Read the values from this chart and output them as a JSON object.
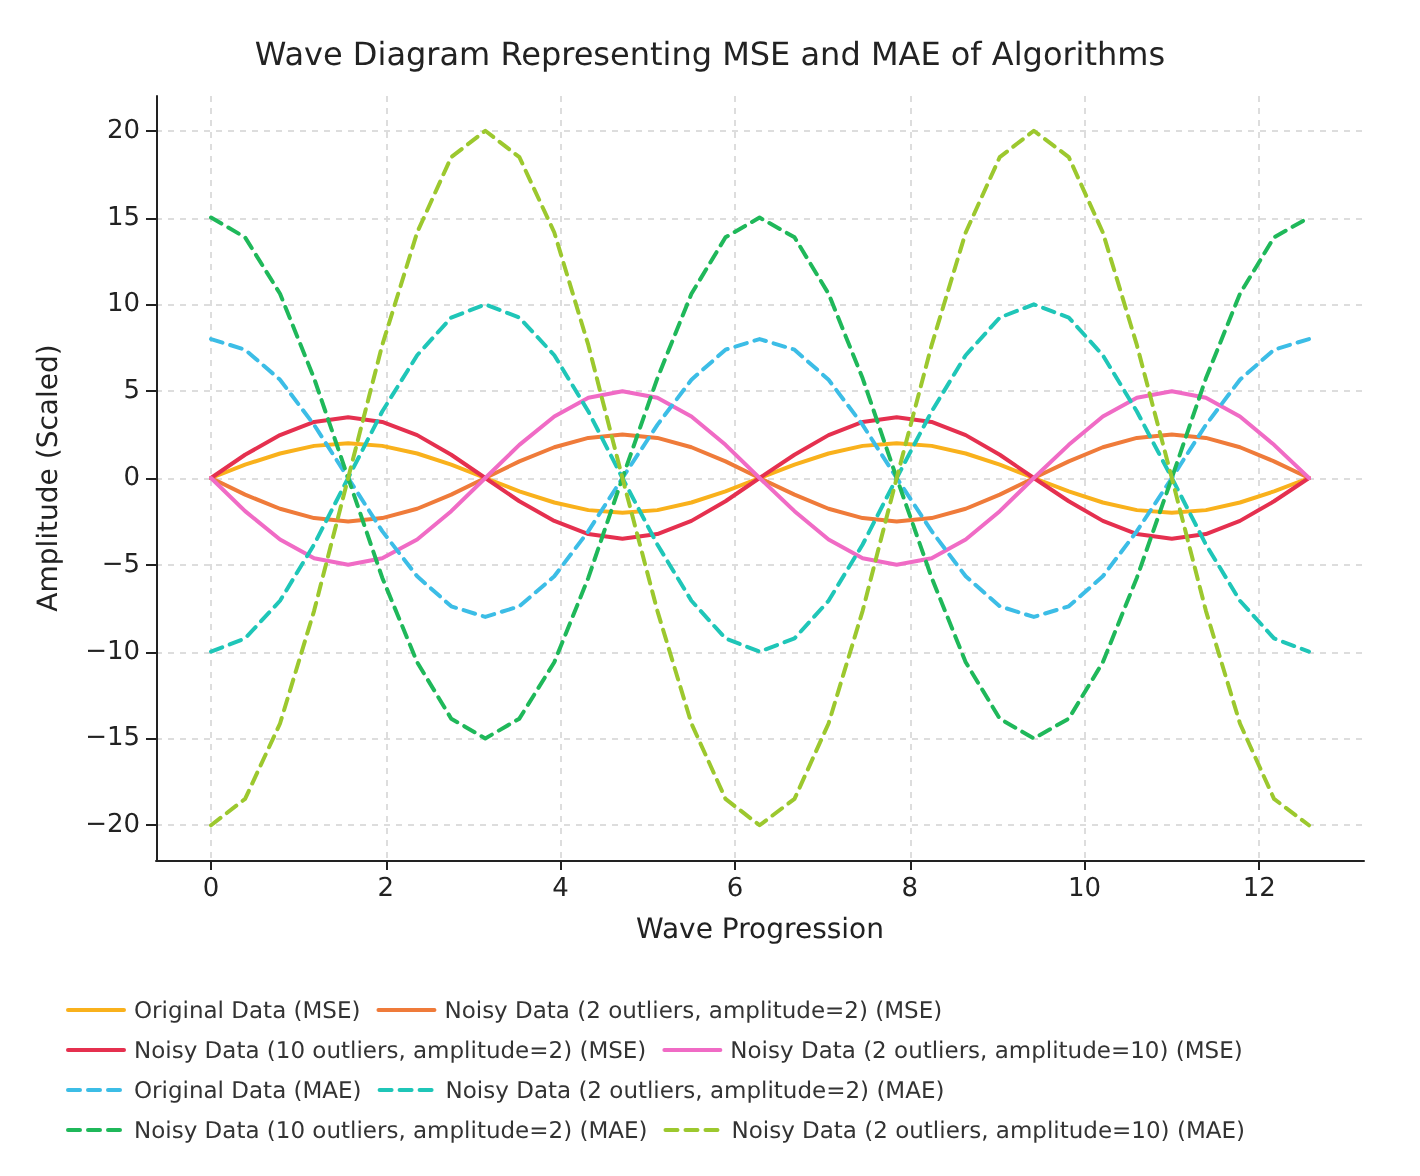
{
  "chart_data": {
    "type": "line",
    "title": "Wave Diagram Representing MSE and MAE of Algorithms",
    "xlabel": "Wave Progression",
    "ylabel": "Amplitude (Scaled)",
    "x": [
      0,
      0.39,
      0.79,
      1.18,
      1.57,
      1.96,
      2.36,
      2.75,
      3.14,
      3.53,
      3.93,
      4.32,
      4.71,
      5.11,
      5.5,
      5.89,
      6.28,
      6.68,
      7.07,
      7.46,
      7.85,
      8.25,
      8.64,
      9.03,
      9.42,
      9.82,
      10.21,
      10.6,
      11,
      11.39,
      11.78,
      12.17,
      12.57
    ],
    "xlim": [
      -0.63,
      13.2
    ],
    "xticks": [
      0,
      2,
      4,
      6,
      8,
      10,
      12
    ],
    "ylim": [
      -22,
      22
    ],
    "yticks": [
      -20,
      -15,
      -10,
      -5,
      0,
      5,
      10,
      15,
      20
    ],
    "grid": true,
    "legend": "bottom",
    "marker": "none",
    "series": [
      {
        "name": "Original Data (MSE)",
        "color": "#f9b11c",
        "line_style": "solid",
        "values": [
          0,
          0.77,
          1.41,
          1.85,
          2,
          1.85,
          1.41,
          0.77,
          0,
          -0.77,
          -1.41,
          -1.85,
          -2,
          -1.85,
          -1.41,
          -0.77,
          0,
          0.77,
          1.41,
          1.85,
          2,
          1.85,
          1.41,
          0.77,
          0,
          -0.77,
          -1.41,
          -1.85,
          -2,
          -1.85,
          -1.41,
          -0.77,
          0
        ]
      },
      {
        "name": "Noisy Data (2 outliers, amplitude=2) (MSE)",
        "color": "#ef7b3a",
        "line_style": "solid",
        "values": [
          0,
          -0.96,
          -1.77,
          -2.31,
          -2.5,
          -2.31,
          -1.77,
          -0.96,
          0,
          0.96,
          1.77,
          2.31,
          2.5,
          2.31,
          1.77,
          0.96,
          0,
          -0.96,
          -1.77,
          -2.31,
          -2.5,
          -2.31,
          -1.77,
          -0.96,
          0,
          0.96,
          1.77,
          2.31,
          2.5,
          2.31,
          1.77,
          0.96,
          0
        ]
      },
      {
        "name": "Noisy Data (10 outliers, amplitude=2) (MSE)",
        "color": "#e5304f",
        "line_style": "solid",
        "values": [
          0,
          1.34,
          2.47,
          3.23,
          3.5,
          3.23,
          2.47,
          1.34,
          0,
          -1.34,
          -2.47,
          -3.23,
          -3.5,
          -3.23,
          -2.47,
          -1.34,
          0,
          1.34,
          2.47,
          3.23,
          3.5,
          3.23,
          2.47,
          1.34,
          0,
          -1.34,
          -2.47,
          -3.23,
          -3.5,
          -3.23,
          -2.47,
          -1.34,
          0
        ]
      },
      {
        "name": "Noisy Data (2 outliers, amplitude=10) (MSE)",
        "color": "#f06bc5",
        "line_style": "solid",
        "values": [
          0,
          -1.91,
          -3.54,
          -4.62,
          -5,
          -4.62,
          -3.54,
          -1.91,
          0,
          1.91,
          3.54,
          4.62,
          5,
          4.62,
          3.54,
          1.91,
          0,
          -1.91,
          -3.54,
          -4.62,
          -5,
          -4.62,
          -3.54,
          -1.91,
          0,
          1.91,
          3.54,
          4.62,
          5,
          4.62,
          3.54,
          1.91,
          0
        ]
      },
      {
        "name": "Original Data (MAE)",
        "color": "#3cbde6",
        "line_style": "dashed",
        "values": [
          8,
          7.39,
          5.66,
          3.06,
          0,
          -3.06,
          -5.66,
          -7.39,
          -8,
          -7.39,
          -5.66,
          -3.06,
          0,
          3.06,
          5.66,
          7.39,
          8,
          7.39,
          5.66,
          3.06,
          0,
          -3.06,
          -5.66,
          -7.39,
          -8,
          -7.39,
          -5.66,
          -3.06,
          0,
          3.06,
          5.66,
          7.39,
          8
        ]
      },
      {
        "name": "Noisy Data (2 outliers, amplitude=2) (MAE)",
        "color": "#1fc6b8",
        "line_style": "dashed",
        "values": [
          -10,
          -9.24,
          -7.07,
          -3.83,
          0,
          3.83,
          7.07,
          9.24,
          10,
          9.24,
          7.07,
          3.83,
          0,
          -3.83,
          -7.07,
          -9.24,
          -10,
          -9.24,
          -7.07,
          -3.83,
          0,
          3.83,
          7.07,
          9.24,
          10,
          9.24,
          7.07,
          3.83,
          0,
          -3.83,
          -7.07,
          -9.24,
          -10
        ]
      },
      {
        "name": "Noisy Data (10 outliers, amplitude=2) (MAE)",
        "color": "#1fb85a",
        "line_style": "dashed",
        "values": [
          15,
          13.86,
          10.61,
          5.74,
          0,
          -5.74,
          -10.61,
          -13.86,
          -15,
          -13.86,
          -10.61,
          -5.74,
          0,
          5.74,
          10.61,
          13.86,
          15,
          13.86,
          10.61,
          5.74,
          0,
          -5.74,
          -10.61,
          -13.86,
          -15,
          -13.86,
          -10.61,
          -5.74,
          0,
          5.74,
          10.61,
          13.86,
          15
        ]
      },
      {
        "name": "Noisy Data (2 outliers, amplitude=10) (MAE)",
        "color": "#9cc82e",
        "line_style": "dashed",
        "values": [
          -20,
          -18.48,
          -14.14,
          -7.65,
          0,
          7.65,
          14.14,
          18.48,
          20,
          18.48,
          14.14,
          7.65,
          0,
          -7.65,
          -14.14,
          -18.48,
          -20,
          -18.48,
          -14.14,
          -7.65,
          0,
          7.65,
          14.14,
          18.48,
          20,
          18.48,
          14.14,
          7.65,
          0,
          -7.65,
          -14.14,
          -18.48,
          -20
        ]
      }
    ]
  }
}
